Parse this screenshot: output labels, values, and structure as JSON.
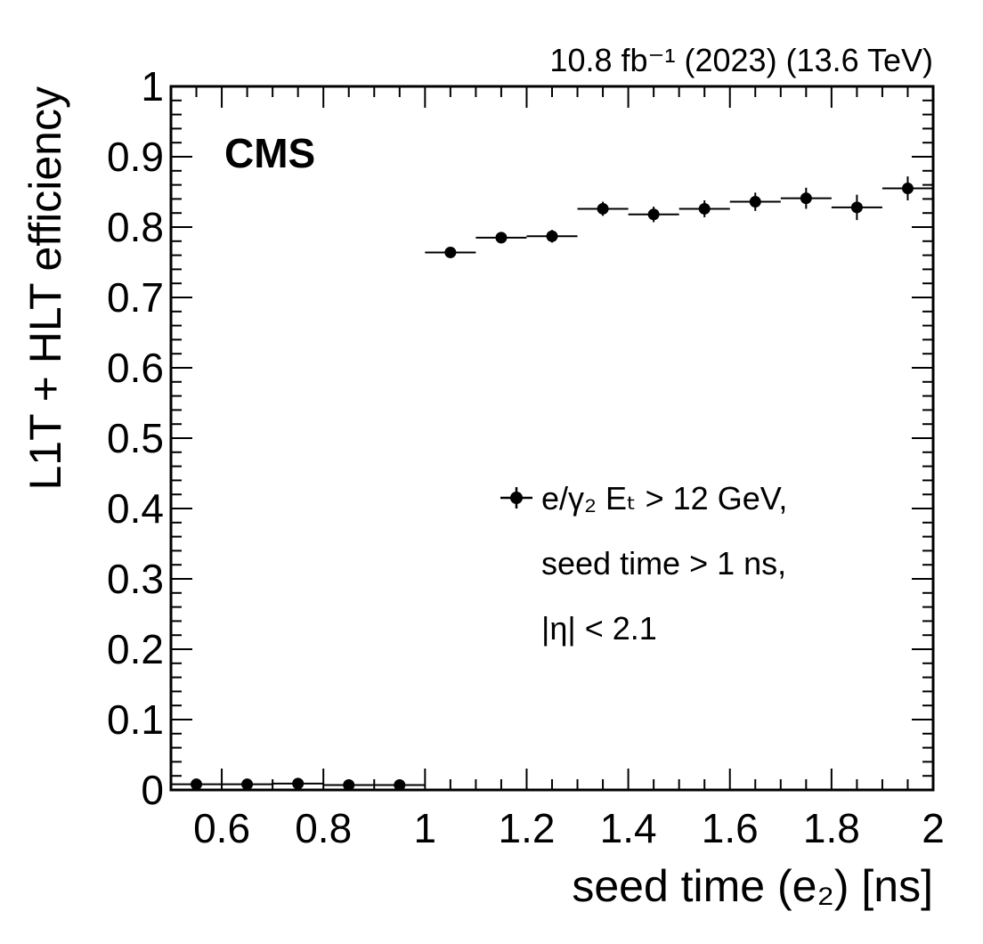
{
  "chart_data": {
    "type": "scatter",
    "header_right": "10.8 fb⁻¹ (2023) (13.6 TeV)",
    "experiment": "CMS",
    "xlabel": "seed time (e₂) [ns]",
    "ylabel": "L1T + HLT efficiency",
    "xlim": [
      0.5,
      2.0
    ],
    "ylim": [
      0,
      1
    ],
    "x_tick_labels": [
      "0.6",
      "0.8",
      "1",
      "1.2",
      "1.4",
      "1.6",
      "1.8",
      "2"
    ],
    "y_tick_labels": [
      "0",
      "0.1",
      "0.2",
      "0.3",
      "0.4",
      "0.5",
      "0.6",
      "0.7",
      "0.8",
      "0.9",
      "1"
    ],
    "series": [
      {
        "name": "e/γ₂ Eₜ > 12 GeV,",
        "x": [
          0.55,
          0.65,
          0.75,
          0.85,
          0.95,
          1.05,
          1.15,
          1.25,
          1.35,
          1.45,
          1.55,
          1.65,
          1.75,
          1.85,
          1.95
        ],
        "x_err": [
          0.05,
          0.05,
          0.05,
          0.05,
          0.05,
          0.05,
          0.05,
          0.05,
          0.05,
          0.05,
          0.05,
          0.05,
          0.05,
          0.05,
          0.05
        ],
        "y": [
          0.008,
          0.008,
          0.009,
          0.007,
          0.007,
          0.764,
          0.785,
          0.787,
          0.826,
          0.818,
          0.826,
          0.836,
          0.841,
          0.828,
          0.855
        ],
        "y_err": [
          0.003,
          0.003,
          0.003,
          0.003,
          0.003,
          0.007,
          0.008,
          0.009,
          0.01,
          0.011,
          0.012,
          0.013,
          0.015,
          0.018,
          0.017
        ]
      }
    ],
    "legend": {
      "lines": [
        "e/γ₂ Eₜ > 12 GeV,",
        "seed time > 1 ns,",
        "|η| < 2.1"
      ],
      "position": "center-right"
    },
    "grid": false
  }
}
